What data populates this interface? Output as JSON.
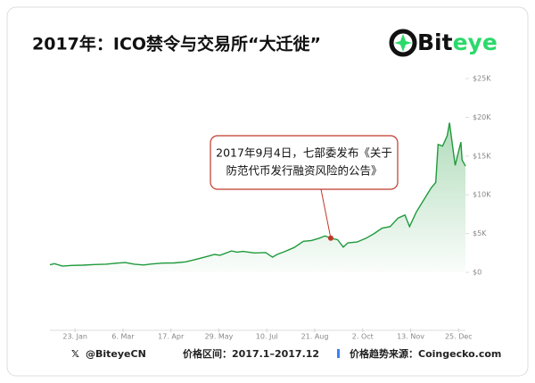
{
  "chart_data": {
    "type": "line",
    "title": "2017年：ICO禁令与交易所“大迁徙”",
    "brand": [
      "Bit",
      "eye"
    ],
    "x": [
      1,
      5,
      12,
      20,
      30,
      40,
      50,
      60,
      67,
      75,
      83,
      90,
      100,
      110,
      120,
      130,
      140,
      145,
      150,
      160,
      165,
      170,
      180,
      190,
      196,
      200,
      207,
      215,
      223,
      230,
      237,
      242,
      247,
      253,
      258,
      262,
      270,
      278,
      285,
      292,
      299,
      306,
      312,
      316,
      322,
      330,
      335,
      339,
      341,
      345,
      349,
      351,
      354,
      356,
      358,
      361,
      362,
      365
    ],
    "series": [
      {
        "color": "#1f9a3c",
        "values": [
          970,
          1120,
          790,
          890,
          920,
          1000,
          1050,
          1190,
          1250,
          1050,
          940,
          1070,
          1190,
          1210,
          1350,
          1700,
          2100,
          2300,
          2200,
          2750,
          2600,
          2700,
          2500,
          2550,
          1950,
          2300,
          2700,
          3200,
          4000,
          4100,
          4400,
          4700,
          4400,
          4200,
          3250,
          3800,
          3900,
          4400,
          5000,
          5700,
          5900,
          7000,
          7400,
          5900,
          7800,
          9700,
          10900,
          11600,
          16500,
          16300,
          17600,
          19300,
          16000,
          13800,
          15000,
          16800,
          14500,
          13700
        ]
      }
    ],
    "xlim": [
      1,
      365
    ],
    "xticks": [
      {
        "value": 23,
        "label": "23. Jan"
      },
      {
        "value": 65,
        "label": "6. Mar"
      },
      {
        "value": 107,
        "label": "17. Apr"
      },
      {
        "value": 149,
        "label": "29. May"
      },
      {
        "value": 191,
        "label": "10. Jul"
      },
      {
        "value": 233,
        "label": "21. Aug"
      },
      {
        "value": 275,
        "label": "2. Oct"
      },
      {
        "value": 317,
        "label": "13. Nov"
      },
      {
        "value": 359,
        "label": "25. Dec"
      }
    ],
    "ylim": [
      0,
      25000
    ],
    "yticks": [
      {
        "value": 0,
        "label": "$0"
      },
      {
        "value": 5000,
        "label": "$5K"
      },
      {
        "value": 10000,
        "label": "$10K"
      },
      {
        "value": 15000,
        "label": "$15K"
      },
      {
        "value": 20000,
        "label": "$20K"
      },
      {
        "value": 25000,
        "label": "$25K"
      }
    ],
    "grid": false,
    "annotation": {
      "lines": [
        "2017年9月4日，七部委发布《关于",
        "防范代币发行融资风险的公告》"
      ],
      "x": 247,
      "y": 4400,
      "color": "#c0392b"
    },
    "footer": {
      "handle": "@BiteyeCN",
      "range": "价格区间：2017.1–2017.12",
      "source": "价格趋势来源：Coingecko.com"
    }
  }
}
